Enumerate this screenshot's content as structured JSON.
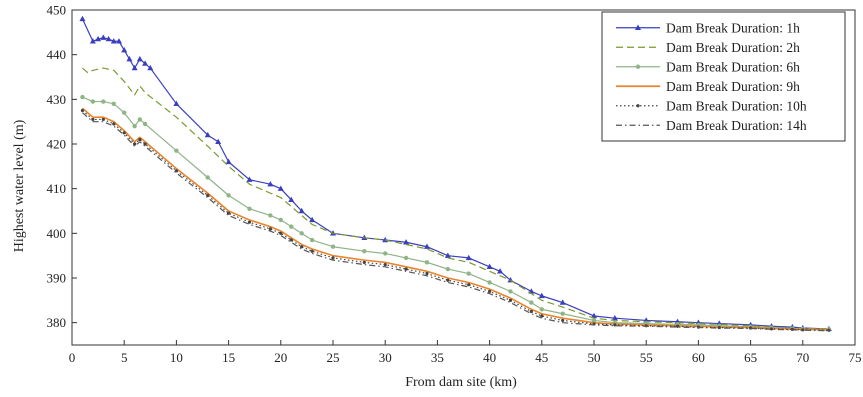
{
  "chart_data": {
    "type": "line",
    "title": "",
    "xlabel": "From dam site (km)",
    "ylabel": "Highest water level (m)",
    "xlim": [
      0,
      75
    ],
    "ylim": [
      375,
      450
    ],
    "x_ticks": [
      0,
      5,
      10,
      15,
      20,
      25,
      30,
      35,
      40,
      45,
      50,
      55,
      60,
      65,
      70,
      75
    ],
    "y_ticks": [
      380,
      390,
      400,
      410,
      420,
      430,
      440,
      450
    ],
    "grid": false,
    "legend_position": "top-right",
    "series": [
      {
        "name": "Dam Break Duration: 1h",
        "color": "#3a3fbf",
        "line_style": "solid",
        "marker": "triangle",
        "x": [
          1,
          2,
          2.5,
          3,
          3.5,
          4,
          4.5,
          5,
          5.5,
          6,
          6.5,
          7,
          7.5,
          10,
          13,
          14,
          15,
          17,
          19,
          20,
          21,
          22,
          23,
          25,
          28,
          30,
          32,
          34,
          36,
          38,
          40,
          41,
          42,
          44,
          45,
          47,
          50,
          52,
          55,
          58,
          60,
          62,
          65,
          67,
          69,
          70,
          72.5
        ],
        "y": [
          448,
          443,
          443.5,
          443.8,
          443.5,
          443,
          443,
          441,
          439,
          437,
          439,
          438,
          437,
          429,
          422,
          420.5,
          416,
          412,
          411,
          410,
          407.5,
          405,
          403,
          400,
          399,
          398.5,
          398,
          397,
          395,
          394.5,
          392.5,
          391.5,
          389.5,
          387,
          386,
          384.5,
          381.5,
          381,
          380.5,
          380.2,
          380,
          379.8,
          379.5,
          379.2,
          379,
          378.8,
          378.6
        ]
      },
      {
        "name": "Dam Break Duration: 2h",
        "color": "#7a9a2e",
        "line_style": "dashed",
        "marker": "none",
        "x": [
          1,
          1.5,
          2,
          3,
          4,
          5,
          6,
          6.5,
          7,
          10,
          13,
          15,
          17,
          19,
          20,
          21,
          22,
          23,
          25,
          28,
          30,
          32,
          34,
          36,
          38,
          40,
          42,
          44,
          45,
          47,
          50,
          52,
          55,
          58,
          60,
          62,
          65,
          67,
          69,
          70,
          72.5
        ],
        "y": [
          437,
          436,
          436.5,
          437,
          436.5,
          434,
          431,
          433,
          431.5,
          426,
          419.5,
          415,
          411,
          409,
          408,
          406,
          404,
          402,
          400,
          399,
          398.5,
          397.5,
          396.5,
          394.5,
          393.5,
          391.5,
          389.5,
          386.5,
          385,
          383.5,
          381,
          380.5,
          380.2,
          380,
          379.8,
          379.6,
          379.3,
          379,
          378.8,
          378.7,
          378.6
        ]
      },
      {
        "name": "Dam Break Duration: 6h",
        "color": "#8fb587",
        "line_style": "solid",
        "marker": "circle",
        "x": [
          1,
          2,
          3,
          4,
          5,
          6,
          6.5,
          7,
          10,
          13,
          15,
          17,
          19,
          20,
          21,
          22,
          23,
          25,
          28,
          30,
          32,
          34,
          36,
          38,
          40,
          42,
          44,
          45,
          47,
          50,
          52,
          55,
          58,
          60,
          62,
          65,
          67,
          69,
          70,
          72.5
        ],
        "y": [
          430.5,
          429.5,
          429.5,
          429,
          427,
          424,
          425.5,
          424.5,
          418.5,
          412.5,
          408.5,
          405.5,
          404,
          403,
          401.5,
          400,
          398.5,
          397,
          396,
          395.5,
          394.5,
          393.5,
          392,
          391,
          389,
          387,
          384.5,
          383,
          382,
          380.5,
          380,
          379.8,
          379.6,
          379.5,
          379.3,
          379.1,
          378.9,
          378.7,
          378.6,
          378.5
        ]
      },
      {
        "name": "Dam Break Duration: 9h",
        "color": "#e8842a",
        "line_style": "solid",
        "marker": "none",
        "x": [
          1,
          2,
          3,
          4,
          5,
          6,
          6.5,
          7,
          10,
          13,
          15,
          17,
          19,
          20,
          21,
          22,
          23,
          25,
          28,
          30,
          32,
          34,
          36,
          38,
          40,
          42,
          44,
          45,
          47,
          50,
          52,
          55,
          58,
          60,
          62,
          65,
          67,
          69,
          70,
          72.5
        ],
        "y": [
          428,
          426,
          426,
          425,
          423,
          420.5,
          421.5,
          420.5,
          414.5,
          409,
          405,
          403,
          401.5,
          400.5,
          399,
          397.5,
          396.5,
          395,
          394,
          393.5,
          392.5,
          391.5,
          390,
          389,
          387.5,
          385.5,
          383,
          382,
          381,
          380,
          379.7,
          379.5,
          379.3,
          379.2,
          379,
          378.9,
          378.7,
          378.6,
          378.5,
          378.4
        ]
      },
      {
        "name": "Dam Break Duration: 10h",
        "color": "#444444",
        "line_style": "dotted",
        "marker": "dot",
        "x": [
          1,
          2,
          3,
          4,
          5,
          6,
          6.5,
          7,
          10,
          13,
          15,
          17,
          19,
          20,
          21,
          22,
          23,
          25,
          28,
          30,
          32,
          34,
          36,
          38,
          40,
          42,
          44,
          45,
          47,
          50,
          52,
          55,
          58,
          60,
          62,
          65,
          67,
          69,
          70,
          72.5
        ],
        "y": [
          427.5,
          425.5,
          425.5,
          424.5,
          422.5,
          420,
          421,
          420,
          414,
          408.5,
          404.5,
          402.5,
          401,
          400,
          398.5,
          397,
          396,
          394.5,
          393.5,
          393,
          392,
          391,
          389.5,
          388.5,
          387,
          385,
          382.5,
          381.5,
          380.5,
          379.7,
          379.5,
          379.3,
          379.2,
          379,
          378.9,
          378.8,
          378.6,
          378.5,
          378.4,
          378.3
        ]
      },
      {
        "name": "Dam Break Duration: 14h",
        "color": "#555555",
        "line_style": "dashdot",
        "marker": "none",
        "x": [
          1,
          2,
          3,
          4,
          5,
          6,
          6.5,
          7,
          10,
          13,
          15,
          17,
          19,
          20,
          21,
          22,
          23,
          25,
          28,
          30,
          32,
          34,
          36,
          38,
          40,
          42,
          44,
          45,
          47,
          50,
          52,
          55,
          58,
          60,
          62,
          65,
          67,
          69,
          70,
          72.5
        ],
        "y": [
          427,
          425,
          425,
          424,
          422,
          419.5,
          420.5,
          419.5,
          413.5,
          408,
          404,
          402,
          400.5,
          399.5,
          398,
          396.5,
          395.5,
          394,
          393,
          392.5,
          391.5,
          390.5,
          389,
          388,
          386.5,
          384.5,
          382,
          381,
          380,
          379.5,
          379.3,
          379.2,
          379,
          378.9,
          378.8,
          378.7,
          378.5,
          378.4,
          378.3,
          378.2
        ]
      }
    ]
  }
}
